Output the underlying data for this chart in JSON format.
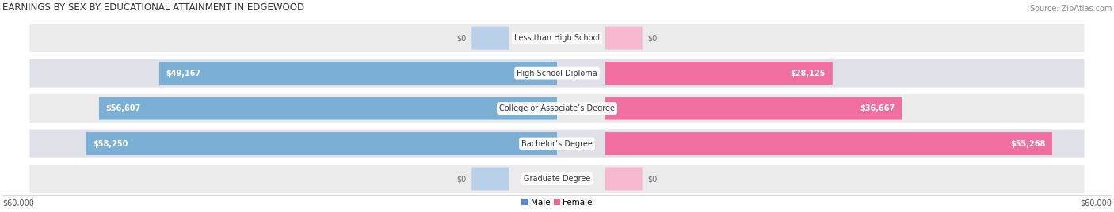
{
  "title": "EARNINGS BY SEX BY EDUCATIONAL ATTAINMENT IN EDGEWOOD",
  "source": "Source: ZipAtlas.com",
  "categories": [
    "Less than High School",
    "High School Diploma",
    "College or Associate’s Degree",
    "Bachelor’s Degree",
    "Graduate Degree"
  ],
  "male_values": [
    0,
    49167,
    56607,
    58250,
    0
  ],
  "female_values": [
    0,
    28125,
    36667,
    55268,
    0
  ],
  "max_value": 60000,
  "male_color": "#7bafd4",
  "female_color": "#f06fa0",
  "male_color_light": "#b8d0e8",
  "female_color_light": "#f5b8ce",
  "row_bg_color": "#ebebeb",
  "row_alt_color": "#e0e0e8",
  "male_label": "Male",
  "female_label": "Female",
  "legend_male_color": "#5588cc",
  "legend_female_color": "#ee6699",
  "axis_label_left": "$60,000",
  "axis_label_right": "$60,000",
  "title_fontsize": 8.5,
  "source_fontsize": 7,
  "bar_label_fontsize": 7,
  "category_fontsize": 7,
  "axis_fontsize": 7,
  "legend_fontsize": 7.5
}
